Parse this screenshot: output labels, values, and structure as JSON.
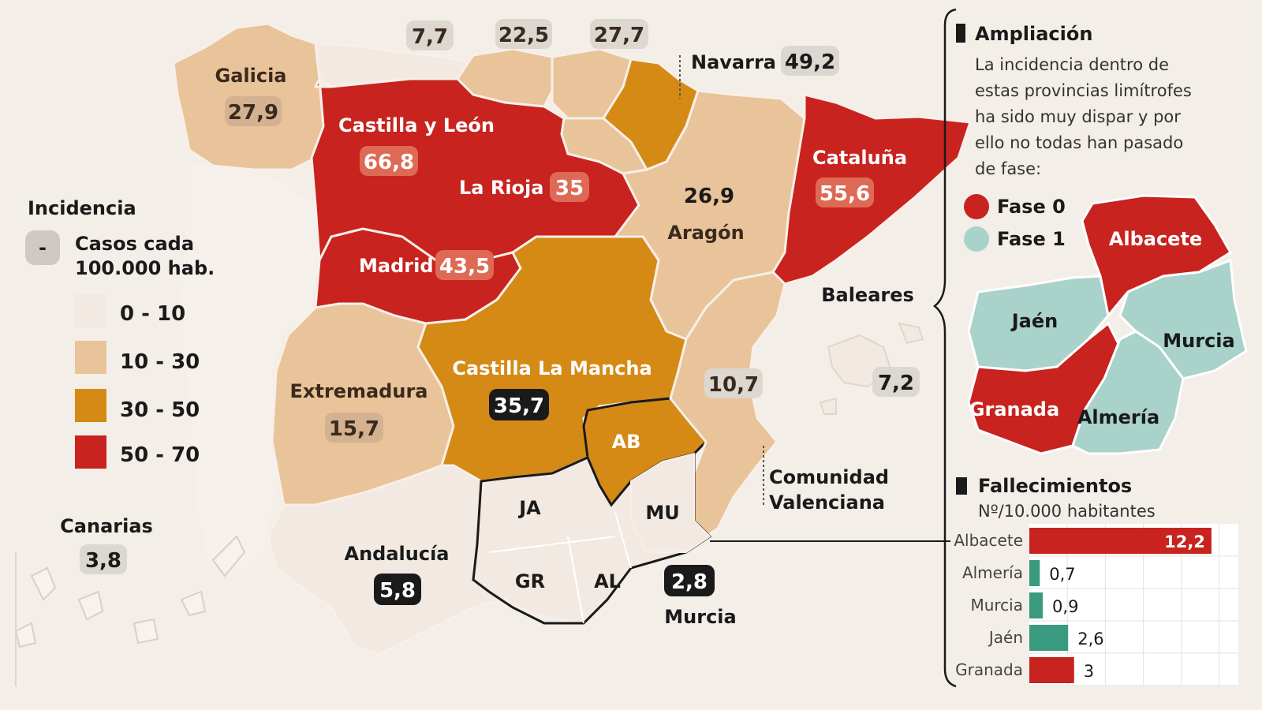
{
  "legend": {
    "title": "Incidencia",
    "key_symbol": "-",
    "key_line1": "Casos  cada",
    "key_line2": "100.000 hab.",
    "bins": [
      {
        "label": "0 - 10",
        "color": "#f2e9e2"
      },
      {
        "label": "10 - 30",
        "color": "#e9c399"
      },
      {
        "label": "30 - 50",
        "color": "#d48a15"
      },
      {
        "label": "50 - 70",
        "color": "#c8231f"
      }
    ]
  },
  "regions": {
    "galicia": {
      "name": "Galicia",
      "value": "27,9"
    },
    "asturias": {
      "value": "7,7"
    },
    "cantabria": {
      "value": "22,5"
    },
    "pais_vasco": {
      "value": "27,7"
    },
    "navarra": {
      "name": "Navarra",
      "value": "49,2"
    },
    "castilla_leon": {
      "name": "Castilla y León",
      "value": "66,8"
    },
    "la_rioja": {
      "name": "La Rioja",
      "value": "35"
    },
    "madrid": {
      "name": "Madrid",
      "value": "43,5"
    },
    "aragon": {
      "name": "Aragón",
      "value": "26,9"
    },
    "cataluna": {
      "name": "Cataluña",
      "value": "55,6"
    },
    "baleares": {
      "name": "Baleares",
      "value": "7,2"
    },
    "extremadura": {
      "name": "Extremadura",
      "value": "15,7"
    },
    "castilla_la_mancha": {
      "name": "Castilla La Mancha",
      "value": "35,7"
    },
    "valenciana": {
      "name_line1": "Comunidad",
      "name_line2": "Valenciana",
      "value": "10,7"
    },
    "andalucia": {
      "name": "Andalucía",
      "value": "5,8"
    },
    "murcia": {
      "name": "Murcia",
      "value": "2,8"
    },
    "canarias": {
      "name": "Canarias",
      "value": "3,8"
    }
  },
  "provinces": {
    "ab": "AB",
    "ja": "JA",
    "mu": "MU",
    "gr": "GR",
    "al": "AL"
  },
  "ampliacion": {
    "title": "Ampliación",
    "text": [
      "La incidencia dentro de",
      "estas provincias limítrofes",
      "ha sido muy dispar y por",
      "ello no todas han pasado",
      "de fase:"
    ],
    "fase0": {
      "label": "Fase 0",
      "color": "#c8231f"
    },
    "fase1": {
      "label": "Fase 1",
      "color": "#a9d2cb"
    },
    "provinces": [
      {
        "name": "Albacete",
        "fase": 0
      },
      {
        "name": "Jaén",
        "fase": 1
      },
      {
        "name": "Murcia",
        "fase": 1
      },
      {
        "name": "Granada",
        "fase": 0
      },
      {
        "name": "Almería",
        "fase": 1
      }
    ]
  },
  "chart_data": {
    "type": "bar",
    "title": "Fallecimientos",
    "subtitle": "Nº/10.000 habitantes",
    "categories": [
      "Albacete",
      "Almería",
      "Murcia",
      "Jaén",
      "Granada"
    ],
    "values": [
      12.2,
      0.7,
      0.9,
      2.6,
      3
    ],
    "value_labels": [
      "12,2",
      "0,7",
      "0,9",
      "2,6",
      "3"
    ],
    "colors": [
      "#c8231f",
      "#3a9a7f",
      "#3a9a7f",
      "#3a9a7f",
      "#c8231f"
    ],
    "xlim": [
      0,
      14
    ]
  }
}
